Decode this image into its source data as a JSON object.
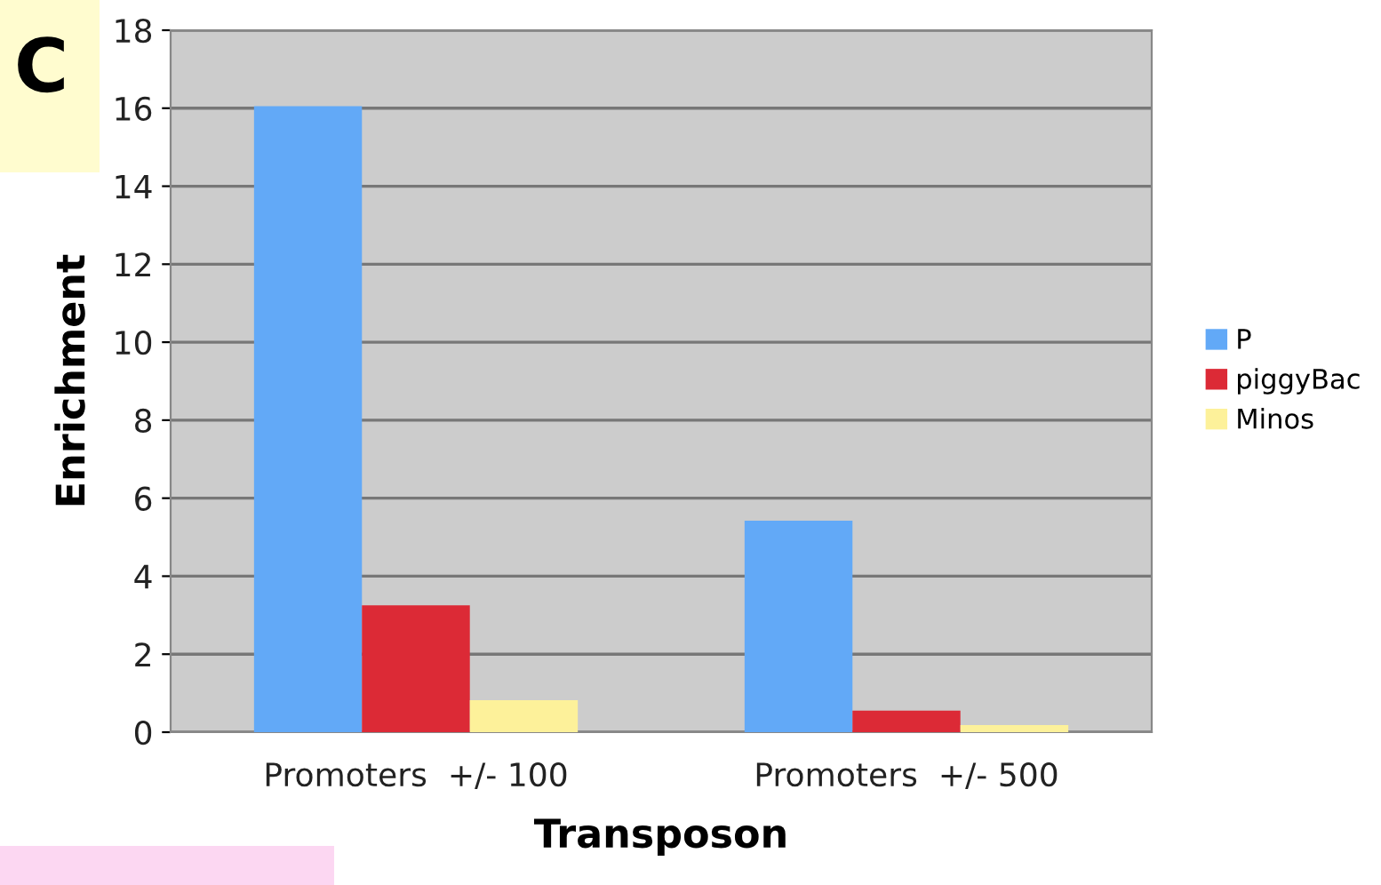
{
  "chart_data": {
    "type": "bar",
    "xlabel": "Transposon",
    "ylabel": "Enrichment",
    "categories": [
      "Promoters  +/- 100",
      "Promoters  +/- 500"
    ],
    "series": [
      {
        "name": "P",
        "color": "#62a9f7",
        "values": [
          16.05,
          5.42
        ]
      },
      {
        "name": "piggyBac",
        "color": "#dc2a36",
        "values": [
          3.25,
          0.55
        ]
      },
      {
        "name": "Minos",
        "color": "#fdf19a",
        "values": [
          0.82,
          0.18
        ]
      }
    ],
    "ylim": [
      0,
      18
    ],
    "yticks": [
      0,
      2,
      4,
      6,
      8,
      10,
      12,
      14,
      16,
      18
    ],
    "grid": "y",
    "legend": "right",
    "annotations": [
      "C"
    ]
  }
}
